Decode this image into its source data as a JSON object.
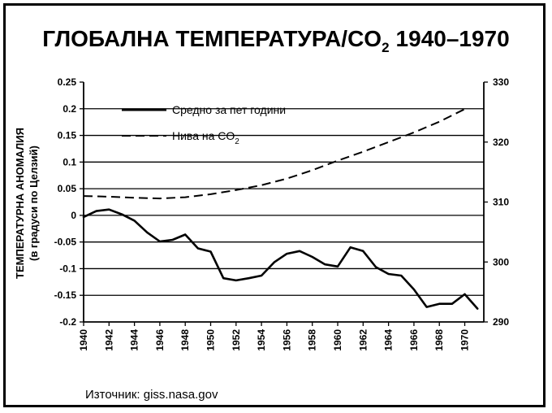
{
  "chart_data": {
    "type": "line",
    "title": "ГЛОБАЛНА ТЕМПЕРАТУРА/CO",
    "title_sub": "2",
    "title_years": "1940–1970",
    "ylabel_line1": "ТЕМПЕРАТУРНА АНОМАЛИЯ",
    "ylabel_line2": "(в градуси по Целзий)",
    "source": "Източник: giss.nasa.gov",
    "x_ticks": [
      "1940",
      "1942",
      "1944",
      "1946",
      "1948",
      "1950",
      "1952",
      "1954",
      "1956",
      "1958",
      "1960",
      "1962",
      "1964",
      "1966",
      "1968",
      "1970"
    ],
    "xlim": [
      1940,
      1971.5
    ],
    "ylim": [
      -0.2,
      0.25
    ],
    "yticks": [
      "0.25",
      "0.2",
      "0.15",
      "0.1",
      "0.05",
      "0",
      "-0.05",
      "-0.1",
      "-0.15",
      "-0.2"
    ],
    "y2lim": [
      290,
      330
    ],
    "y2ticks": [
      "330",
      "320",
      "310",
      "300",
      "290"
    ],
    "grid": "horizontal",
    "legend_position": "top-center",
    "series": [
      {
        "name": "Средно за пет години",
        "axis": "left",
        "style": "solid",
        "x": [
          1940,
          1941,
          1942,
          1943,
          1944,
          1945,
          1946,
          1947,
          1948,
          1949,
          1950,
          1951,
          1952,
          1953,
          1954,
          1955,
          1956,
          1957,
          1958,
          1959,
          1960,
          1961,
          1962,
          1963,
          1964,
          1965,
          1966,
          1967,
          1968,
          1969,
          1970,
          1971
        ],
        "values": [
          -0.003,
          0.008,
          0.011,
          0.002,
          -0.01,
          -0.032,
          -0.049,
          -0.046,
          -0.036,
          -0.062,
          -0.068,
          -0.118,
          -0.122,
          -0.118,
          -0.113,
          -0.088,
          -0.072,
          -0.067,
          -0.078,
          -0.092,
          -0.096,
          -0.06,
          -0.067,
          -0.097,
          -0.11,
          -0.113,
          -0.139,
          -0.172,
          -0.166,
          -0.166,
          -0.148,
          -0.175
        ]
      },
      {
        "name": "Нива на CO",
        "name_sub": "2",
        "axis": "right",
        "style": "dashed",
        "x": [
          1940,
          1942,
          1944,
          1946,
          1948,
          1950,
          1952,
          1954,
          1956,
          1958,
          1960,
          1962,
          1964,
          1966,
          1968,
          1970
        ],
        "values": [
          311.0,
          310.9,
          310.7,
          310.6,
          310.8,
          311.3,
          312.0,
          312.8,
          313.9,
          315.3,
          316.9,
          318.4,
          320.0,
          321.6,
          323.4,
          325.5
        ]
      }
    ]
  }
}
